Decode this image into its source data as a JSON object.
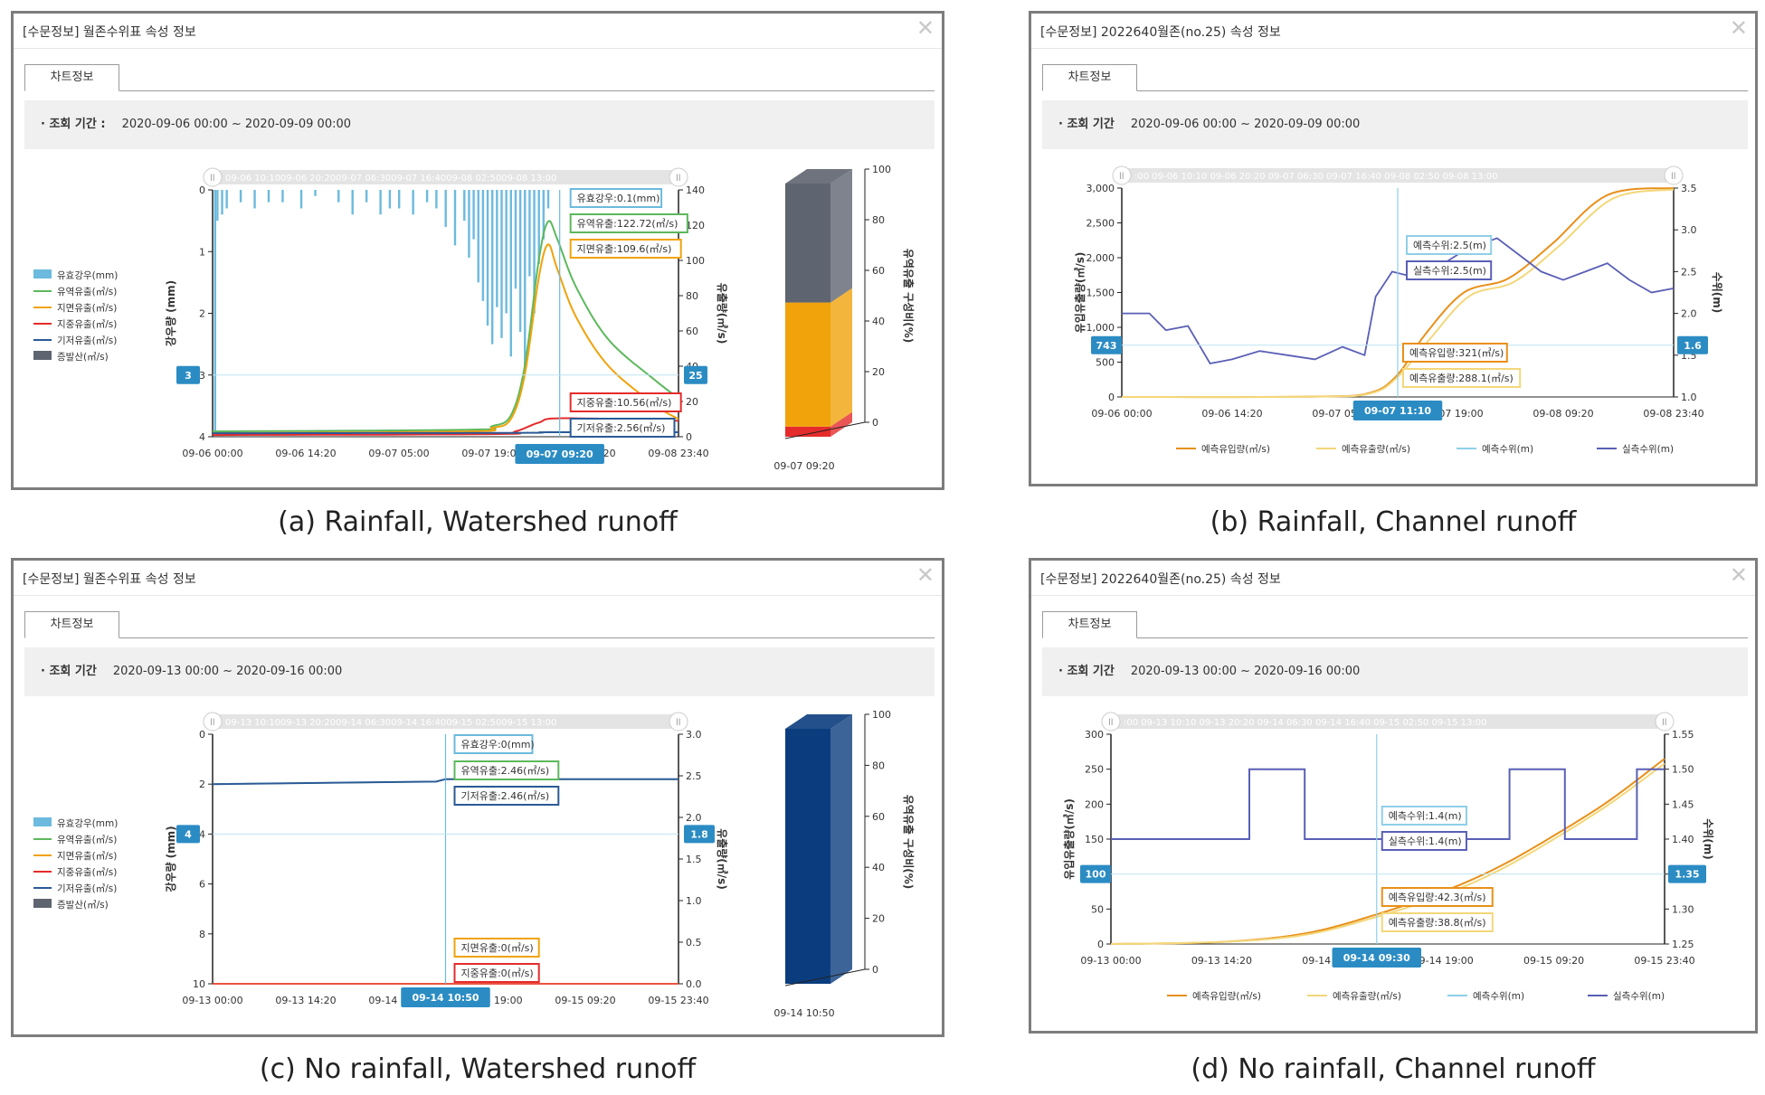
{
  "panels": [
    {
      "id": "a",
      "title": "[수문정보] 월존수위표 속성 정보",
      "tab_label": "차트정보",
      "query_label": "· 조회 기간 :",
      "query_value": "2020-09-06 00:00 ~ 2020-09-09 00:00",
      "caption": "(a) Rainfall, Watershed runoff"
    },
    {
      "id": "b",
      "title": "[수문정보] 2022640월존(no.25) 속성 정보",
      "tab_label": "차트정보",
      "query_label": "· 조회 기간",
      "query_value": "2020-09-06 00:00 ~ 2020-09-09 00:00",
      "caption": "(b) Rainfall, Channel runoff"
    },
    {
      "id": "c",
      "title": "[수문정보] 월존수위표 속성 정보",
      "tab_label": "차트정보",
      "query_label": "· 조회 기간",
      "query_value": "2020-09-13 00:00 ~ 2020-09-16 00:00",
      "caption": "(c) No rainfall, Watershed runoff"
    },
    {
      "id": "d",
      "title": "[수문정보] 2022640월존(no.25) 속성 정보",
      "tab_label": "차트정보",
      "query_label": "· 조회 기간",
      "query_value": "2020-09-13 00:00 ~ 2020-09-16 00:00",
      "caption": "(d) No rainfall, Channel runoff"
    }
  ],
  "colors": {
    "rain": "#6cbadd",
    "watershed": "#5cb85c",
    "surface": "#f0a30a",
    "subsurface": "#e52b2b",
    "base": "#2a5a96",
    "evap": "#5e6470",
    "inflow": "#e8901a",
    "outflow": "#f3d77a",
    "pred_level": "#8fcfe8",
    "obs_level": "#5a5fb6",
    "badge": "#2b8cc4",
    "navy": "#0b3d7e"
  },
  "chart_data": [
    {
      "type": "line",
      "panel": "a",
      "x_ticks": [
        "09-06 00:00",
        "09-06 14:20",
        "09-07 05:00",
        "09-07 19:00",
        "09-08 09:20",
        "09-08 23:40"
      ],
      "y_left": {
        "label": "강우량 (mm)",
        "ticks": [
          0,
          1,
          2,
          3,
          4
        ],
        "inverted": true
      },
      "y_right": {
        "label": "유출량(㎥/s)",
        "ticks": [
          0,
          20,
          40,
          60,
          80,
          100,
          120,
          140
        ]
      },
      "navigator_labels": "09-06 10:1009-06 20:2009-07 06:3009-07 16:4009-08 02:5009-08 13:00",
      "legend": [
        "유효강우(mm)",
        "유역유출(㎥/s)",
        "지면유출(㎥/s)",
        "지중유출(㎥/s)",
        "기저유출(㎥/s)",
        "증발산(㎥/s)"
      ],
      "cursor_label": "09-07 09:20",
      "left_badge": "3",
      "right_badge": "25",
      "tooltips": [
        {
          "text": "유효강우:0.1(mm)",
          "series": "rain"
        },
        {
          "text": "유역유출:122.72(㎥/s)",
          "series": "watershed"
        },
        {
          "text": "지면유출:109.6(㎥/s)",
          "series": "surface"
        },
        {
          "text": "지중유출:10.56(㎥/s)",
          "series": "subsurface"
        },
        {
          "text": "기저유출:2.56(㎥/s)",
          "series": "base"
        }
      ],
      "series": [
        {
          "name": "유역유출(㎥/s)",
          "color_key": "watershed",
          "x": [
            0,
            0.55,
            0.6,
            0.64,
            0.67,
            0.7,
            0.72,
            0.74,
            0.78,
            0.85,
            0.95,
            1.0
          ],
          "values": [
            3,
            4,
            6,
            12,
            40,
            100,
            122,
            112,
            85,
            55,
            32,
            22
          ]
        },
        {
          "name": "지면유출(㎥/s)",
          "color_key": "surface",
          "x": [
            0,
            0.55,
            0.6,
            0.64,
            0.67,
            0.7,
            0.72,
            0.74,
            0.78,
            0.85,
            0.95,
            1.0
          ],
          "values": [
            2,
            3,
            5,
            10,
            35,
            90,
            109,
            95,
            68,
            40,
            18,
            10
          ]
        },
        {
          "name": "지중유출(㎥/s)",
          "color_key": "subsurface",
          "x": [
            0,
            0.6,
            0.65,
            0.7,
            0.75,
            1.0
          ],
          "values": [
            1,
            1.5,
            3,
            8,
            10.5,
            9
          ]
        },
        {
          "name": "기저유출(㎥/s)",
          "color_key": "base",
          "x": [
            0,
            0.65,
            0.72,
            1.0
          ],
          "values": [
            2,
            2.2,
            2.56,
            2.56
          ]
        }
      ],
      "rain_ticks_note": "rainfall bars shown as blue hyetograph from top",
      "side_bar": {
        "label": "유역유출 구성비(%)",
        "ticks": [
          0,
          20,
          40,
          60,
          80,
          100
        ],
        "x_label": "09-07 09:20",
        "segments": [
          {
            "color_key": "subsurface",
            "percent": 4
          },
          {
            "color_key": "surface",
            "percent": 49
          },
          {
            "color_key": "evap",
            "percent": 47
          }
        ]
      }
    },
    {
      "type": "line",
      "panel": "b",
      "x_ticks": [
        "09-06 00:00",
        "09-06 14:20",
        "09-07 05:00",
        "09-07 19:00",
        "09-08 09:20",
        "09-08 23:40"
      ],
      "y_left": {
        "label": "유입유출량(㎥/s)",
        "ticks": [
          0,
          500,
          1000,
          1500,
          2000,
          2500,
          3000
        ]
      },
      "y_right": {
        "label": "수위(m)",
        "ticks": [
          1.0,
          1.5,
          2.0,
          2.5,
          3.0,
          3.5
        ]
      },
      "navigator_labels": ":00  09-06 10:10  09-06 20:20  09-07 06:30  09-07 16:40  09-08 02:50  09-08 13:00",
      "legend": [
        "예측유입량(㎥/s)",
        "예측유출량(㎥/s)",
        "예측수위(m)",
        "실측수위(m)"
      ],
      "cursor_label": "09-07 11:10",
      "left_badge": "743",
      "right_badge": "1.6",
      "tooltips": [
        {
          "text": "예측수위:2.5(m)",
          "series": "pred_level"
        },
        {
          "text": "실측수위:2.5(m)",
          "series": "obs_level"
        },
        {
          "text": "예측유입량:321(㎥/s)",
          "series": "inflow"
        },
        {
          "text": "예측유출량:288.1(㎥/s)",
          "series": "outflow"
        }
      ],
      "series": [
        {
          "name": "예측유입량(㎥/s)",
          "color_key": "inflow",
          "x": [
            0,
            0.35,
            0.45,
            0.5,
            0.55,
            0.62,
            0.7,
            0.78,
            0.88,
            1.0
          ],
          "values": [
            0,
            5,
            60,
            321,
            900,
            1500,
            1700,
            2200,
            2900,
            3000
          ]
        },
        {
          "name": "예측유출량(㎥/s)",
          "color_key": "outflow",
          "x": [
            0,
            0.35,
            0.45,
            0.5,
            0.56,
            0.63,
            0.71,
            0.79,
            0.89,
            1.0
          ],
          "values": [
            0,
            4,
            50,
            288.1,
            850,
            1450,
            1650,
            2150,
            2850,
            2980
          ]
        },
        {
          "name": "실측수위(m)",
          "color_key": "obs_level",
          "x": [
            0,
            0.05,
            0.08,
            0.12,
            0.16,
            0.2,
            0.25,
            0.3,
            0.35,
            0.4,
            0.44,
            0.46,
            0.49,
            0.52,
            0.56,
            0.62,
            0.68,
            0.72,
            0.76,
            0.8,
            0.84,
            0.88,
            0.92,
            0.96,
            1.0
          ],
          "values": [
            2.0,
            2.0,
            1.8,
            1.85,
            1.4,
            1.45,
            1.55,
            1.5,
            1.45,
            1.6,
            1.5,
            2.2,
            2.5,
            2.45,
            2.5,
            2.75,
            2.9,
            2.7,
            2.5,
            2.4,
            2.5,
            2.6,
            2.4,
            2.25,
            2.3
          ]
        },
        {
          "name": "예측수위(m)",
          "color_key": "pred_level",
          "x": [
            0.52,
            0.52
          ],
          "values": [
            2.5,
            2.5
          ]
        }
      ]
    },
    {
      "type": "line",
      "panel": "c",
      "x_ticks": [
        "09-13 00:00",
        "09-13 14:20",
        "09-14 05:00",
        "09-14 19:00",
        "09-15 09:20",
        "09-15 23:40"
      ],
      "y_left": {
        "label": "강우량 (mm)",
        "ticks": [
          0,
          2,
          4,
          6,
          8,
          10
        ],
        "inverted": true
      },
      "y_right": {
        "label": "유출량(㎥/s)",
        "ticks": [
          0.0,
          0.5,
          1.0,
          1.5,
          2.0,
          2.5,
          3.0
        ]
      },
      "navigator_labels": "09-13 10:1009-13 20:2009-14 06:3009-14 16:4009-15 02:5009-15 13:00",
      "legend": [
        "유효강우(mm)",
        "유역유출(㎥/s)",
        "지면유출(㎥/s)",
        "지중유출(㎥/s)",
        "기저유출(㎥/s)",
        "증발산(㎥/s)"
      ],
      "cursor_label": "09-14 10:50",
      "left_badge": "4",
      "right_badge": "1.8",
      "tooltips": [
        {
          "text": "유효강우:0(mm)",
          "series": "rain"
        },
        {
          "text": "유역유출:2.46(㎥/s)",
          "series": "watershed"
        },
        {
          "text": "기저유출:2.46(㎥/s)",
          "series": "base"
        },
        {
          "text": "지면유출:0(㎥/s)",
          "series": "surface"
        },
        {
          "text": "지중유출:0(㎥/s)",
          "series": "subsurface"
        }
      ],
      "series": [
        {
          "name": "유역유출(㎥/s)",
          "color_key": "watershed",
          "x": [
            0,
            0.48,
            0.5,
            1.0
          ],
          "values": [
            2.4,
            2.43,
            2.46,
            2.46
          ]
        },
        {
          "name": "기저유출(㎥/s)",
          "color_key": "base",
          "x": [
            0,
            0.48,
            0.5,
            1.0
          ],
          "values": [
            2.4,
            2.43,
            2.46,
            2.46
          ]
        },
        {
          "name": "지면유출(㎥/s)",
          "color_key": "surface",
          "x": [
            0,
            1.0
          ],
          "values": [
            0,
            0
          ]
        },
        {
          "name": "지중유출(㎥/s)",
          "color_key": "subsurface",
          "x": [
            0,
            1.0
          ],
          "values": [
            0,
            0
          ]
        }
      ],
      "side_bar": {
        "label": "유역유출 구성비(%)",
        "ticks": [
          0,
          20,
          40,
          60,
          80,
          100
        ],
        "x_label": "09-14 10:50",
        "segments": [
          {
            "color_key": "navy",
            "percent": 100
          }
        ]
      }
    },
    {
      "type": "line",
      "panel": "d",
      "x_ticks": [
        "09-13 00:00",
        "09-13 14:20",
        "09-14 05:00",
        "09-14 19:00",
        "09-15 09:20",
        "09-15 23:40"
      ],
      "y_left": {
        "label": "유입유출량(㎥/s)",
        "ticks": [
          0,
          50,
          100,
          150,
          200,
          250,
          300
        ]
      },
      "y_right": {
        "label": "수위(m)",
        "ticks": [
          1.25,
          1.3,
          1.35,
          1.4,
          1.45,
          1.5,
          1.55
        ]
      },
      "navigator_labels": ":00  09-13 10:10  09-13 20:20  09-14 06:30  09-14 16:40  09-15 02:50  09-15 13:00",
      "legend": [
        "예측유입량(㎥/s)",
        "예측유출량(㎥/s)",
        "예측수위(m)",
        "실측수위(m)"
      ],
      "cursor_label": "09-14 09:30",
      "left_badge": "100",
      "right_badge": "1.35",
      "tooltips": [
        {
          "text": "예측수위:1.4(m)",
          "series": "pred_level"
        },
        {
          "text": "실측수위:1.4(m)",
          "series": "obs_level"
        },
        {
          "text": "예측유입량:42.3(㎥/s)",
          "series": "inflow"
        },
        {
          "text": "예측유출량:38.8(㎥/s)",
          "series": "outflow"
        }
      ],
      "series": [
        {
          "name": "예측유입량(㎥/s)",
          "color_key": "inflow",
          "x": [
            0,
            0.2,
            0.35,
            0.48,
            0.6,
            0.7,
            0.8,
            0.9,
            1.0
          ],
          "values": [
            0,
            3,
            15,
            42.3,
            75,
            110,
            155,
            205,
            265
          ]
        },
        {
          "name": "예측유출량(㎥/s)",
          "color_key": "outflow",
          "x": [
            0,
            0.2,
            0.35,
            0.48,
            0.6,
            0.7,
            0.8,
            0.9,
            1.0
          ],
          "values": [
            0,
            3,
            13,
            38.8,
            70,
            105,
            150,
            200,
            258
          ]
        },
        {
          "name": "실측수위(m)",
          "color_key": "obs_level",
          "x": [
            0,
            0.25,
            0.25,
            0.35,
            0.35,
            0.72,
            0.72,
            0.82,
            0.82,
            0.95,
            0.95,
            1.0
          ],
          "values": [
            1.4,
            1.4,
            1.5,
            1.5,
            1.4,
            1.4,
            1.5,
            1.5,
            1.4,
            1.4,
            1.5,
            1.5
          ]
        }
      ]
    }
  ]
}
